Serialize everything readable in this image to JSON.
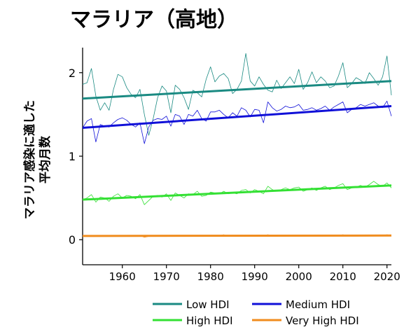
{
  "chart_data": {
    "type": "line",
    "title": "マラリア（高地）",
    "ylabel_lines": [
      "マラリア感染に適した",
      "平均月数"
    ],
    "xlabel": "",
    "xlim": [
      1951,
      2021
    ],
    "ylim": [
      -0.3,
      2.3
    ],
    "x_ticks": [
      1960,
      1970,
      1980,
      1990,
      2000,
      2010,
      2020
    ],
    "y_ticks": [
      0,
      1,
      2
    ],
    "grid": false,
    "legend_position": "bottom-center",
    "x": [
      1951,
      1952,
      1953,
      1954,
      1955,
      1956,
      1957,
      1958,
      1959,
      1960,
      1961,
      1962,
      1963,
      1964,
      1965,
      1966,
      1967,
      1968,
      1969,
      1970,
      1971,
      1972,
      1973,
      1974,
      1975,
      1976,
      1977,
      1978,
      1979,
      1980,
      1981,
      1982,
      1983,
      1984,
      1985,
      1986,
      1987,
      1988,
      1989,
      1990,
      1991,
      1992,
      1993,
      1994,
      1995,
      1996,
      1997,
      1998,
      1999,
      2000,
      2001,
      2002,
      2003,
      2004,
      2005,
      2006,
      2007,
      2008,
      2009,
      2010,
      2011,
      2012,
      2013,
      2014,
      2015,
      2016,
      2017,
      2018,
      2019,
      2020,
      2021
    ],
    "series": [
      {
        "name": "Low HDI",
        "color": "#1a8a82",
        "trend": [
          1.69,
          1.9
        ],
        "values": [
          1.86,
          1.88,
          2.05,
          1.72,
          1.55,
          1.64,
          1.55,
          1.8,
          1.98,
          1.95,
          1.82,
          1.74,
          1.7,
          1.8,
          1.5,
          1.25,
          1.45,
          1.7,
          1.84,
          1.78,
          1.52,
          1.85,
          1.8,
          1.7,
          1.56,
          1.79,
          1.76,
          1.71,
          1.92,
          2.07,
          1.89,
          1.96,
          1.99,
          1.93,
          1.75,
          1.8,
          1.9,
          2.23,
          1.9,
          1.84,
          1.95,
          1.86,
          1.79,
          1.77,
          1.91,
          1.81,
          1.88,
          1.95,
          1.87,
          2.04,
          1.8,
          1.88,
          2.01,
          1.88,
          1.95,
          1.9,
          1.82,
          1.84,
          1.96,
          2.12,
          1.82,
          1.87,
          1.94,
          1.91,
          1.87,
          2.0,
          1.93,
          1.85,
          1.95,
          2.2,
          1.73
        ]
      },
      {
        "name": "Medium HDI",
        "color": "#1010d8",
        "trend": [
          1.34,
          1.6
        ],
        "values": [
          1.34,
          1.42,
          1.45,
          1.17,
          1.38,
          1.36,
          1.35,
          1.4,
          1.44,
          1.46,
          1.43,
          1.38,
          1.35,
          1.4,
          1.15,
          1.35,
          1.43,
          1.45,
          1.44,
          1.48,
          1.36,
          1.5,
          1.48,
          1.38,
          1.5,
          1.48,
          1.55,
          1.45,
          1.42,
          1.53,
          1.53,
          1.55,
          1.5,
          1.46,
          1.52,
          1.48,
          1.58,
          1.55,
          1.47,
          1.56,
          1.55,
          1.4,
          1.65,
          1.58,
          1.54,
          1.56,
          1.6,
          1.58,
          1.59,
          1.62,
          1.55,
          1.56,
          1.58,
          1.55,
          1.57,
          1.6,
          1.55,
          1.59,
          1.62,
          1.65,
          1.52,
          1.56,
          1.58,
          1.62,
          1.6,
          1.62,
          1.64,
          1.6,
          1.58,
          1.66,
          1.48
        ]
      },
      {
        "name": "High HDI",
        "color": "#33e033",
        "trend": [
          0.48,
          0.65
        ],
        "values": [
          0.48,
          0.5,
          0.54,
          0.45,
          0.51,
          0.5,
          0.46,
          0.52,
          0.55,
          0.5,
          0.53,
          0.52,
          0.49,
          0.54,
          0.42,
          0.47,
          0.52,
          0.53,
          0.51,
          0.55,
          0.47,
          0.56,
          0.53,
          0.5,
          0.55,
          0.54,
          0.58,
          0.52,
          0.53,
          0.57,
          0.56,
          0.55,
          0.58,
          0.55,
          0.56,
          0.55,
          0.59,
          0.6,
          0.56,
          0.6,
          0.58,
          0.55,
          0.64,
          0.6,
          0.58,
          0.6,
          0.62,
          0.6,
          0.62,
          0.63,
          0.58,
          0.6,
          0.62,
          0.59,
          0.62,
          0.64,
          0.6,
          0.62,
          0.65,
          0.67,
          0.6,
          0.62,
          0.63,
          0.65,
          0.63,
          0.66,
          0.7,
          0.66,
          0.64,
          0.68,
          0.62
        ]
      },
      {
        "name": "Very High HDI",
        "color": "#f08c1e",
        "trend": [
          0.045,
          0.05
        ],
        "values": [
          0.04,
          0.05,
          0.05,
          0.04,
          0.05,
          0.04,
          0.04,
          0.05,
          0.05,
          0.05,
          0.04,
          0.05,
          0.04,
          0.05,
          0.03,
          0.04,
          0.05,
          0.05,
          0.04,
          0.05,
          0.04,
          0.05,
          0.05,
          0.04,
          0.05,
          0.05,
          0.05,
          0.04,
          0.05,
          0.05,
          0.05,
          0.05,
          0.06,
          0.04,
          0.05,
          0.05,
          0.05,
          0.05,
          0.04,
          0.05,
          0.05,
          0.05,
          0.06,
          0.05,
          0.05,
          0.05,
          0.05,
          0.05,
          0.05,
          0.05,
          0.05,
          0.05,
          0.05,
          0.05,
          0.05,
          0.05,
          0.05,
          0.05,
          0.05,
          0.06,
          0.05,
          0.05,
          0.05,
          0.05,
          0.05,
          0.05,
          0.05,
          0.05,
          0.05,
          0.06,
          0.05
        ]
      }
    ]
  }
}
